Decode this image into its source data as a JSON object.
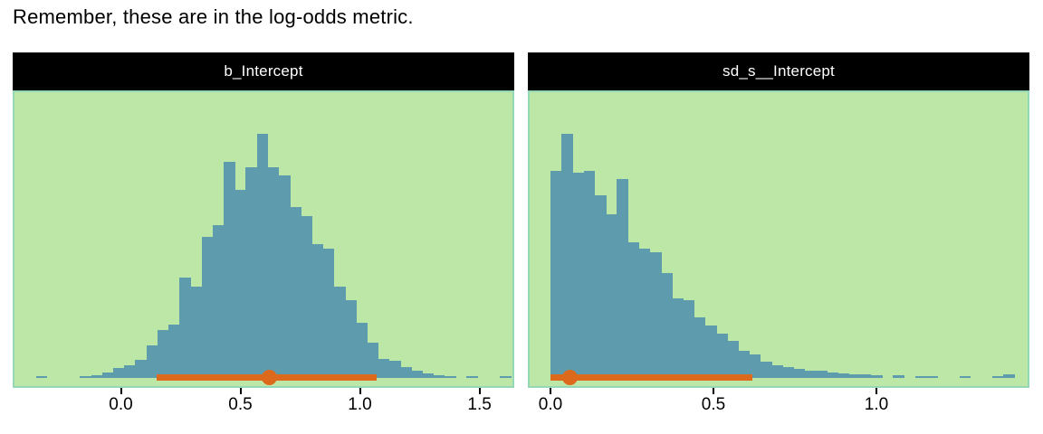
{
  "title": "Remember, these are in the log-odds metric.",
  "colors": {
    "page_bg": "#ffffff",
    "panel_bg": "#bce7a6",
    "panel_border": "#94d8b8",
    "strip_bg": "#000000",
    "strip_text": "#ffffff",
    "bar_fill": "#5e9bac",
    "interval": "#dd6a1c",
    "tick": "#000000",
    "text": "#000000"
  },
  "chart_data": [
    {
      "type": "bar",
      "subtype": "posterior-histogram-with-interval",
      "facet_label": "b_Intercept",
      "xlabel": "",
      "ylabel": "",
      "grid": false,
      "legend": false,
      "xlim": [
        -0.445,
        1.638
      ],
      "x_ticks": [
        0.0,
        0.5,
        1.0,
        1.5
      ],
      "tick_labels": [
        "0.0",
        "0.5",
        "1.0",
        "1.5"
      ],
      "bin_start": -0.356,
      "bin_width": 0.0462,
      "rel_heights": [
        0.007,
        0,
        0,
        0,
        0.007,
        0.011,
        0.022,
        0.041,
        0.052,
        0.074,
        0.133,
        0.196,
        0.219,
        0.411,
        0.374,
        0.578,
        0.626,
        0.885,
        0.77,
        0.863,
        1.0,
        0.863,
        0.83,
        0.7,
        0.663,
        0.548,
        0.53,
        0.374,
        0.319,
        0.226,
        0.144,
        0.078,
        0.07,
        0.044,
        0.03,
        0.019,
        0.011,
        0.007,
        0,
        0.007,
        0,
        0,
        0.007
      ],
      "interval": {
        "point": 0.62,
        "lower": 0.15,
        "upper": 1.07
      }
    },
    {
      "type": "bar",
      "subtype": "posterior-histogram-with-interval",
      "facet_label": "sd_s__Intercept",
      "xlabel": "",
      "ylabel": "",
      "grid": false,
      "legend": false,
      "xlim": [
        -0.064,
        1.464
      ],
      "x_ticks": [
        0.0,
        0.5,
        1.0
      ],
      "tick_labels": [
        "0.0",
        "0.5",
        "1.0"
      ],
      "bin_start": 0.0,
      "bin_width": 0.0339,
      "rel_heights": [
        0.848,
        1.0,
        0.84,
        0.848,
        0.747,
        0.669,
        0.814,
        0.554,
        0.528,
        0.513,
        0.431,
        0.327,
        0.32,
        0.249,
        0.216,
        0.182,
        0.152,
        0.112,
        0.097,
        0.067,
        0.052,
        0.045,
        0.037,
        0.03,
        0.03,
        0.022,
        0.019,
        0.015,
        0.015,
        0.011,
        0,
        0.011,
        0,
        0.007,
        0.007,
        0,
        0,
        0.007,
        0,
        0,
        0.007,
        0.015,
        0
      ],
      "interval": {
        "point": 0.06,
        "lower": 0.0,
        "upper": 0.62
      }
    }
  ]
}
